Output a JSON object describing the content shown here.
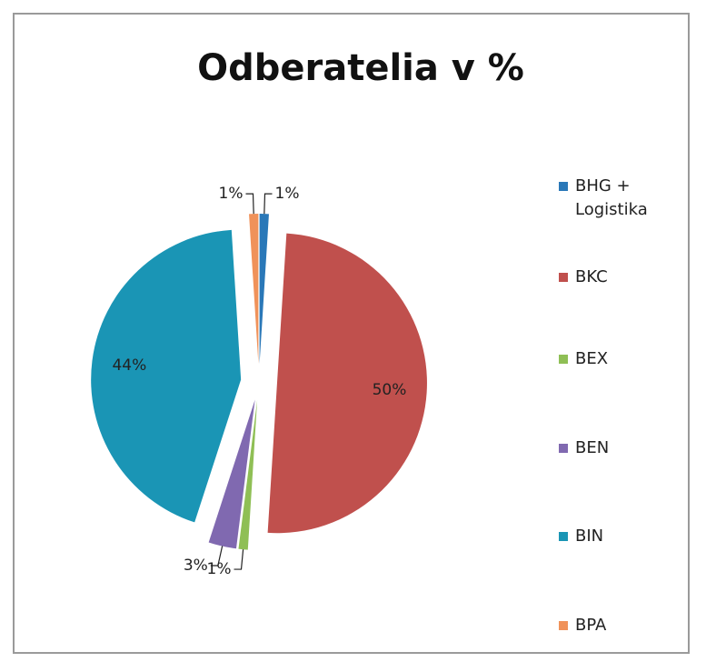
{
  "chart_data": {
    "type": "pie",
    "title": "Odberatelia v %",
    "categories": [
      "BHG + Logistika",
      "BKC",
      "BEX",
      "BEN",
      "BIN",
      "BPA"
    ],
    "values": [
      1,
      50,
      1,
      3,
      44,
      1
    ],
    "value_labels": [
      "1%",
      "50%",
      "1%",
      "3%",
      "44%",
      "1%"
    ],
    "colors": [
      "#2a78b8",
      "#c0504d",
      "#8fbf55",
      "#8069b0",
      "#1a95b5",
      "#f0925a"
    ],
    "legend": "right"
  }
}
